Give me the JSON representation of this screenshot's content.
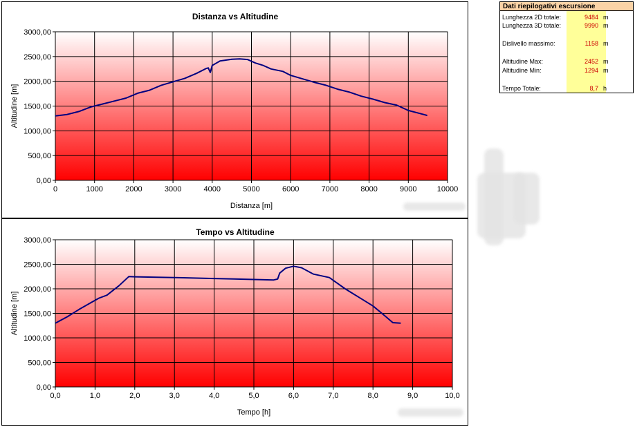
{
  "summary": {
    "title": "Dati riepilogativi escursione",
    "rows": [
      {
        "label": "Lunghezza 2D totale:",
        "value": "9484",
        "unit": "m"
      },
      {
        "label": "Lunghezza 3D totale:",
        "value": "9990",
        "unit": "m"
      },
      {
        "label": "Dislivello massimo:",
        "value": "1158",
        "unit": "m"
      },
      {
        "label": "Altitudine Max:",
        "value": "2452",
        "unit": "m"
      },
      {
        "label": "Altitudine Min:",
        "value": "1294",
        "unit": "m"
      },
      {
        "label": "Tempo Totale:",
        "value": "8,7",
        "unit": "h"
      }
    ]
  },
  "chart_data": [
    {
      "type": "line",
      "title": "Distanza vs Altitudine",
      "xlabel": "Distanza [m]",
      "ylabel": "Altitudine [m]",
      "xlim": [
        0,
        10000
      ],
      "ylim": [
        0,
        3000
      ],
      "x_ticks": [
        "0",
        "1000",
        "2000",
        "3000",
        "4000",
        "5000",
        "6000",
        "7000",
        "8000",
        "9000",
        "10000"
      ],
      "y_ticks": [
        "0,00",
        "500,00",
        "1000,00",
        "1500,00",
        "2000,00",
        "2500,00",
        "3000,00"
      ],
      "grid": true,
      "background": "vertical gradient red (bottom) to white (top)",
      "line_color": "#000080",
      "series": [
        {
          "x": [
            0,
            300,
            600,
            900,
            1200,
            1500,
            1800,
            2100,
            2400,
            2700,
            3000,
            3300,
            3600,
            3850,
            3900,
            3950,
            4000,
            4200,
            4500,
            4700,
            4900,
            5100,
            5300,
            5500,
            5800,
            6000,
            6300,
            6600,
            6900,
            7200,
            7500,
            7800,
            8100,
            8400,
            8700,
            9000,
            9300,
            9484
          ],
          "y": [
            1300,
            1330,
            1390,
            1480,
            1540,
            1600,
            1660,
            1760,
            1820,
            1920,
            1990,
            2060,
            2160,
            2260,
            2270,
            2180,
            2320,
            2410,
            2445,
            2452,
            2440,
            2370,
            2320,
            2250,
            2200,
            2120,
            2050,
            1980,
            1920,
            1840,
            1780,
            1700,
            1640,
            1570,
            1520,
            1410,
            1350,
            1310
          ]
        }
      ]
    },
    {
      "type": "line",
      "title": "Tempo vs Altitudine",
      "xlabel": "Tempo [h]",
      "ylabel": "Altitudine [m]",
      "xlim": [
        0,
        10
      ],
      "ylim": [
        0,
        3000
      ],
      "x_ticks": [
        "0,0",
        "1,0",
        "2,0",
        "3,0",
        "4,0",
        "5,0",
        "6,0",
        "7,0",
        "8,0",
        "9,0",
        "10,0"
      ],
      "y_ticks": [
        "0,00",
        "500,00",
        "1000,00",
        "1500,00",
        "2000,00",
        "2500,00",
        "3000,00"
      ],
      "grid": true,
      "background": "vertical gradient red (bottom) to white (top)",
      "line_color": "#000080",
      "series": [
        {
          "x": [
            0,
            0.3,
            0.6,
            0.9,
            1.1,
            1.3,
            1.6,
            1.85,
            2.0,
            3.0,
            4.0,
            4.5,
            5.0,
            5.5,
            5.6,
            5.65,
            5.8,
            6.0,
            6.2,
            6.5,
            6.9,
            7.3,
            7.7,
            8.0,
            8.3,
            8.5,
            8.7
          ],
          "y": [
            1300,
            1430,
            1580,
            1720,
            1810,
            1870,
            2060,
            2250,
            2245,
            2230,
            2210,
            2200,
            2190,
            2180,
            2200,
            2320,
            2420,
            2460,
            2430,
            2300,
            2230,
            2000,
            1800,
            1650,
            1450,
            1310,
            1300
          ]
        }
      ]
    }
  ]
}
